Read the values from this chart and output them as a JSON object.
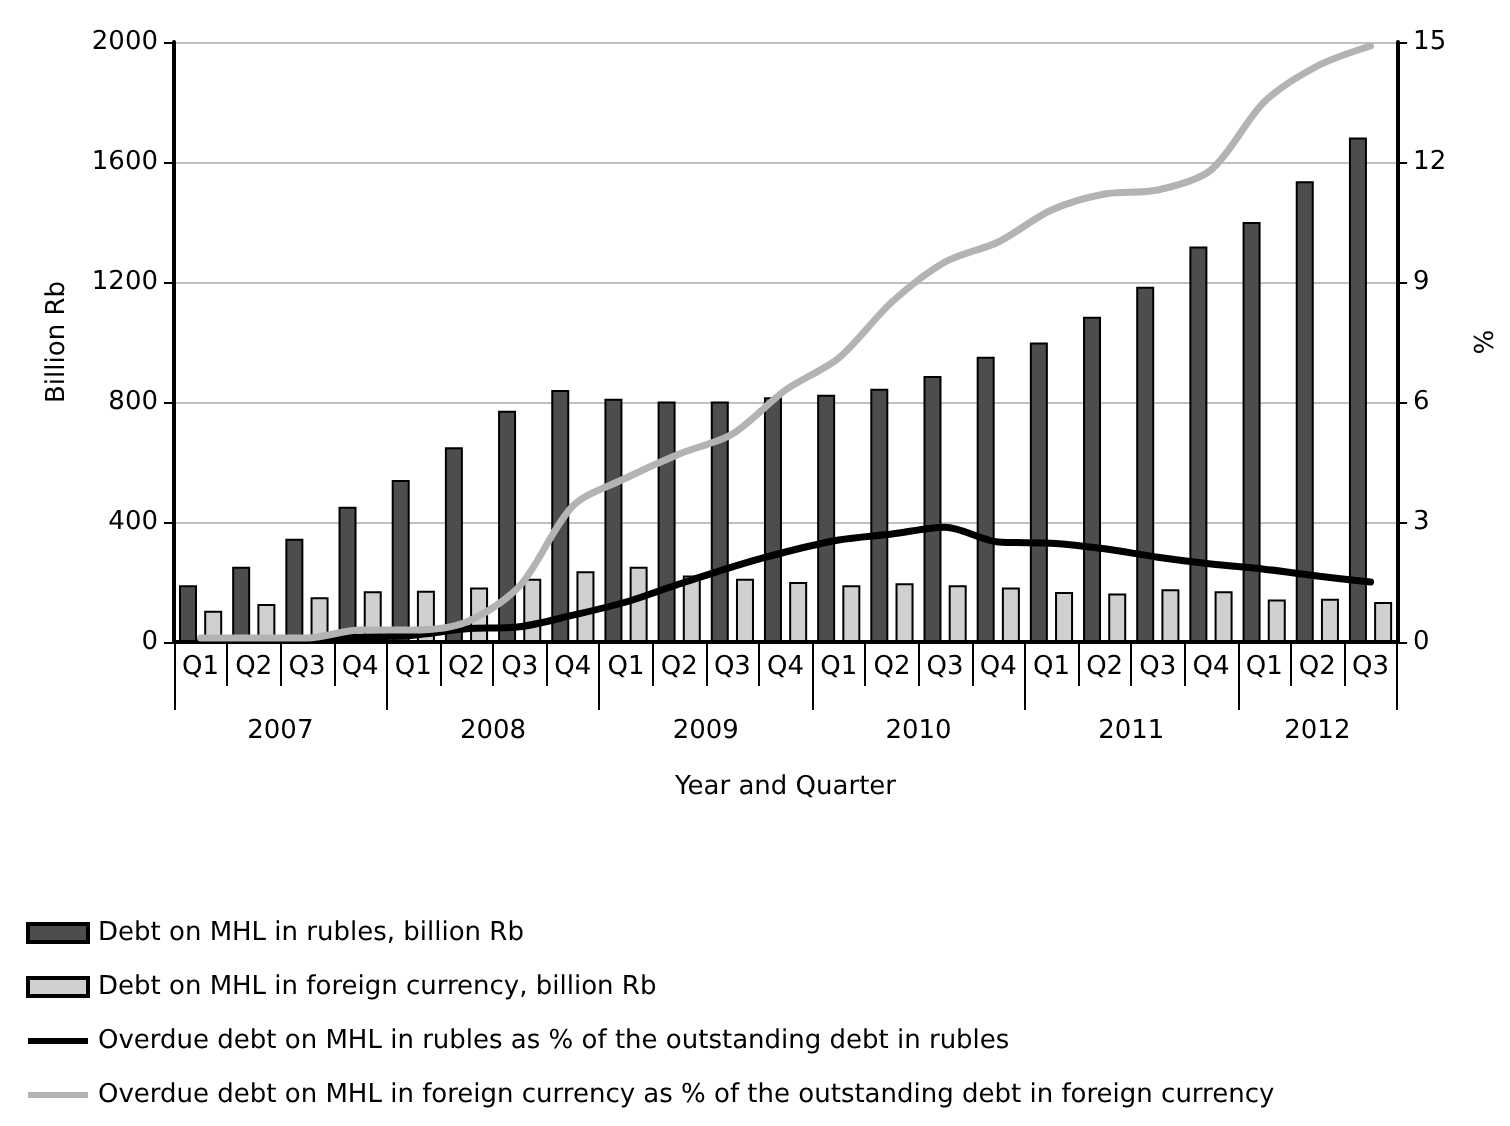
{
  "chart_data": {
    "type": "bar",
    "categories": [
      "Q1",
      "Q2",
      "Q3",
      "Q4",
      "Q1",
      "Q2",
      "Q3",
      "Q4",
      "Q1",
      "Q2",
      "Q3",
      "Q4",
      "Q1",
      "Q2",
      "Q3",
      "Q4",
      "Q1",
      "Q2",
      "Q3",
      "Q4",
      "Q1",
      "Q2",
      "Q3"
    ],
    "xlabel": "Year and Quarter",
    "ylabel": "Billion Rb",
    "y2label": "%",
    "annotations": [
      "2007",
      "2008",
      "2009",
      "2010",
      "2011",
      "2012"
    ],
    "series": [
      {
        "name": "Debt on MHL in rubles, billion Rb",
        "color": "#4d4d4d",
        "values": [
          189,
          251,
          344,
          451,
          540,
          649,
          771,
          840,
          811,
          802,
          802,
          816,
          824,
          844,
          887,
          951,
          998,
          1084,
          1184,
          1318,
          1400,
          1536,
          1682
        ]
      },
      {
        "name": "Debt on MHL in foreign currency, billion Rb",
        "color": "#d0d0d0",
        "values": [
          104,
          127,
          149,
          169,
          171,
          182,
          211,
          236,
          251,
          222,
          211,
          200,
          189,
          196,
          189,
          182,
          167,
          162,
          176,
          169,
          142,
          144,
          133
        ]
      },
      {
        "name": "Overdue debt on MHL in rubles as % of the outstanding debt in rubles",
        "type": "line",
        "axis": "y2",
        "color": "#000000",
        "values": [
          0.05,
          0.05,
          0.08,
          0.12,
          0.17,
          0.33,
          0.38,
          0.67,
          1.0,
          1.45,
          1.88,
          2.25,
          2.55,
          2.7,
          2.87,
          2.5,
          2.47,
          2.33,
          2.12,
          1.95,
          1.82,
          1.65,
          1.5
        ]
      },
      {
        "name": "Overdue debt on MHL in foreign currency as % of the outstanding debt in foreign currency",
        "type": "line",
        "axis": "y2",
        "color": "#b3b3b3",
        "values": [
          0.1,
          0.1,
          0.1,
          0.3,
          0.3,
          0.5,
          1.4,
          3.4,
          4.1,
          4.7,
          5.2,
          6.3,
          7.1,
          8.5,
          9.5,
          10.0,
          10.8,
          11.2,
          11.3,
          11.8,
          13.5,
          14.4,
          14.9
        ]
      }
    ],
    "ylim": [
      0,
      2000
    ],
    "yticks": [
      0,
      400,
      800,
      1200,
      1600,
      2000
    ],
    "y2lim": [
      0,
      15
    ],
    "y2ticks": [
      0,
      3,
      6,
      9,
      12,
      15
    ],
    "grid": "y",
    "legend": "bottom",
    "marker": "none",
    "line_style": "solid"
  }
}
